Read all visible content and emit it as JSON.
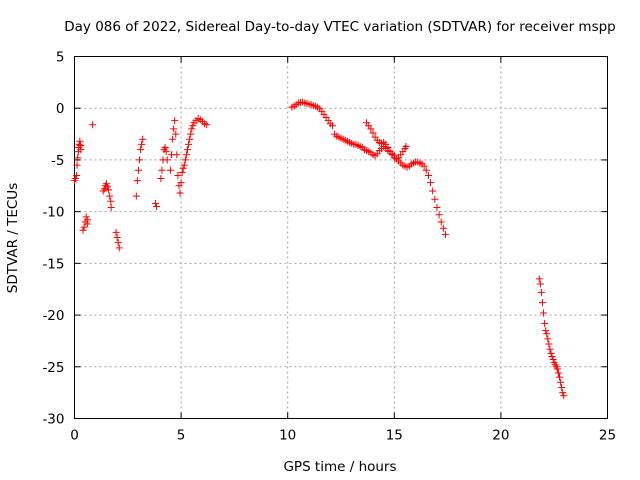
{
  "chart_data": {
    "type": "scatter",
    "title": "Day 086 of 2022, Sidereal Day-to-day VTEC variation (SDTVAR) for receiver mspp",
    "xlabel": "GPS time / hours",
    "ylabel": "SDTVAR / TECUs",
    "xlim": [
      0,
      25
    ],
    "ylim": [
      -30,
      5
    ],
    "xticks": [
      0,
      5,
      10,
      15,
      20,
      25
    ],
    "yticks": [
      5,
      0,
      -5,
      -10,
      -15,
      -20,
      -25,
      -30
    ],
    "grid": true,
    "marker": "+",
    "color": "#ff0000",
    "series": [
      {
        "name": "SDTVAR",
        "points": [
          [
            0.0,
            -7.0
          ],
          [
            0.05,
            -6.8
          ],
          [
            0.1,
            -6.5
          ],
          [
            0.12,
            -5.5
          ],
          [
            0.15,
            -4.8
          ],
          [
            0.18,
            -4.2
          ],
          [
            0.2,
            -3.8
          ],
          [
            0.22,
            -3.5
          ],
          [
            0.25,
            -3.2
          ],
          [
            0.28,
            -3.6
          ],
          [
            0.3,
            -4.0
          ],
          [
            0.4,
            -11.8
          ],
          [
            0.45,
            -11.5
          ],
          [
            0.5,
            -11.0
          ],
          [
            0.55,
            -10.5
          ],
          [
            0.6,
            -11.2
          ],
          [
            0.62,
            -10.8
          ],
          [
            0.85,
            -1.6
          ],
          [
            1.35,
            -8.0
          ],
          [
            1.4,
            -7.8
          ],
          [
            1.45,
            -7.5
          ],
          [
            1.5,
            -7.3
          ],
          [
            1.55,
            -7.6
          ],
          [
            1.6,
            -7.9
          ],
          [
            1.65,
            -8.5
          ],
          [
            1.7,
            -9.0
          ],
          [
            1.72,
            -9.6
          ],
          [
            1.95,
            -12.0
          ],
          [
            2.0,
            -12.5
          ],
          [
            2.05,
            -13.0
          ],
          [
            2.1,
            -13.5
          ],
          [
            2.9,
            -8.5
          ],
          [
            2.95,
            -7.0
          ],
          [
            3.0,
            -6.0
          ],
          [
            3.05,
            -5.0
          ],
          [
            3.1,
            -4.0
          ],
          [
            3.15,
            -3.5
          ],
          [
            3.2,
            -3.0
          ],
          [
            3.8,
            -9.2
          ],
          [
            3.85,
            -9.5
          ],
          [
            4.05,
            -6.8
          ],
          [
            4.1,
            -6.0
          ],
          [
            4.15,
            -5.0
          ],
          [
            4.2,
            -4.0
          ],
          [
            4.25,
            -3.8
          ],
          [
            4.3,
            -4.2
          ],
          [
            4.35,
            -5.0
          ],
          [
            4.5,
            -6.0
          ],
          [
            4.55,
            -4.5
          ],
          [
            4.6,
            -3.0
          ],
          [
            4.65,
            -2.0
          ],
          [
            4.7,
            -1.2
          ],
          [
            4.75,
            -2.5
          ],
          [
            4.8,
            -4.5
          ],
          [
            4.85,
            -6.5
          ],
          [
            4.9,
            -7.5
          ],
          [
            4.95,
            -8.2
          ],
          [
            5.0,
            -7.2
          ],
          [
            5.05,
            -6.2
          ],
          [
            5.1,
            -5.8
          ],
          [
            5.15,
            -5.5
          ],
          [
            5.2,
            -5.0
          ],
          [
            5.25,
            -4.5
          ],
          [
            5.3,
            -4.0
          ],
          [
            5.35,
            -3.5
          ],
          [
            5.4,
            -3.0
          ],
          [
            5.45,
            -2.5
          ],
          [
            5.5,
            -2.0
          ],
          [
            5.55,
            -1.7
          ],
          [
            5.6,
            -1.4
          ],
          [
            5.7,
            -1.2
          ],
          [
            5.8,
            -1.0
          ],
          [
            5.9,
            -1.1
          ],
          [
            6.0,
            -1.3
          ],
          [
            6.1,
            -1.5
          ],
          [
            6.2,
            -1.6
          ],
          [
            10.2,
            0.1
          ],
          [
            10.3,
            0.2
          ],
          [
            10.4,
            0.35
          ],
          [
            10.5,
            0.5
          ],
          [
            10.6,
            0.55
          ],
          [
            10.7,
            0.6
          ],
          [
            10.8,
            0.5
          ],
          [
            10.9,
            0.45
          ],
          [
            11.0,
            0.4
          ],
          [
            11.1,
            0.35
          ],
          [
            11.2,
            0.25
          ],
          [
            11.3,
            0.2
          ],
          [
            11.4,
            0.1
          ],
          [
            11.5,
            -0.05
          ],
          [
            11.6,
            -0.3
          ],
          [
            11.7,
            -0.6
          ],
          [
            11.8,
            -0.9
          ],
          [
            11.9,
            -1.2
          ],
          [
            12.0,
            -1.5
          ],
          [
            12.1,
            -1.7
          ],
          [
            12.2,
            -2.5
          ],
          [
            12.3,
            -2.7
          ],
          [
            12.4,
            -2.8
          ],
          [
            12.5,
            -2.9
          ],
          [
            12.6,
            -3.0
          ],
          [
            12.7,
            -3.1
          ],
          [
            12.8,
            -3.2
          ],
          [
            12.9,
            -3.3
          ],
          [
            13.0,
            -3.4
          ],
          [
            13.1,
            -3.5
          ],
          [
            13.2,
            -3.5
          ],
          [
            13.3,
            -3.6
          ],
          [
            13.4,
            -3.7
          ],
          [
            13.5,
            -3.8
          ],
          [
            13.6,
            -4.0
          ],
          [
            13.7,
            -4.1
          ],
          [
            13.8,
            -4.2
          ],
          [
            13.9,
            -4.3
          ],
          [
            14.0,
            -4.5
          ],
          [
            14.1,
            -4.6
          ],
          [
            14.2,
            -4.4
          ],
          [
            14.3,
            -4.1
          ],
          [
            14.4,
            -3.9
          ],
          [
            14.5,
            -3.7
          ],
          [
            14.6,
            -3.9
          ],
          [
            14.7,
            -4.1
          ],
          [
            14.8,
            -4.2
          ],
          [
            14.9,
            -4.4
          ],
          [
            15.0,
            -4.6
          ],
          [
            15.1,
            -4.9
          ],
          [
            15.2,
            -5.1
          ],
          [
            15.3,
            -5.3
          ],
          [
            15.4,
            -5.5
          ],
          [
            15.5,
            -5.6
          ],
          [
            15.6,
            -5.7
          ],
          [
            15.7,
            -5.6
          ],
          [
            15.8,
            -5.4
          ],
          [
            15.9,
            -5.3
          ],
          [
            16.0,
            -5.2
          ],
          [
            16.1,
            -5.2
          ],
          [
            16.2,
            -5.3
          ],
          [
            16.3,
            -5.4
          ],
          [
            16.4,
            -5.6
          ],
          [
            16.5,
            -6.0
          ],
          [
            16.6,
            -6.5
          ],
          [
            16.7,
            -7.2
          ],
          [
            16.8,
            -8.0
          ],
          [
            16.9,
            -8.8
          ],
          [
            17.0,
            -9.6
          ],
          [
            17.1,
            -10.3
          ],
          [
            17.2,
            -11.0
          ],
          [
            17.3,
            -11.6
          ],
          [
            17.4,
            -12.2
          ],
          [
            13.7,
            -1.4
          ],
          [
            13.8,
            -1.7
          ],
          [
            13.9,
            -2.0
          ],
          [
            14.0,
            -2.4
          ],
          [
            14.1,
            -2.8
          ],
          [
            14.2,
            -3.1
          ],
          [
            14.3,
            -3.3
          ],
          [
            14.4,
            -3.4
          ],
          [
            14.5,
            -3.3
          ],
          [
            14.6,
            -3.5
          ],
          [
            14.7,
            -3.8
          ],
          [
            14.8,
            -4.2
          ],
          [
            14.9,
            -4.5
          ],
          [
            15.0,
            -4.8
          ],
          [
            15.1,
            -4.9
          ],
          [
            15.2,
            -4.8
          ],
          [
            15.3,
            -4.5
          ],
          [
            15.4,
            -4.2
          ],
          [
            15.5,
            -3.9
          ],
          [
            15.55,
            -3.7
          ],
          [
            21.8,
            -16.5
          ],
          [
            21.85,
            -17.0
          ],
          [
            21.9,
            -17.8
          ],
          [
            21.95,
            -18.8
          ],
          [
            22.0,
            -19.8
          ],
          [
            22.05,
            -20.8
          ],
          [
            22.1,
            -21.5
          ],
          [
            22.15,
            -21.8
          ],
          [
            22.2,
            -22.3
          ],
          [
            22.25,
            -22.8
          ],
          [
            22.3,
            -23.3
          ],
          [
            22.35,
            -23.7
          ],
          [
            22.4,
            -24.0
          ],
          [
            22.45,
            -24.3
          ],
          [
            22.5,
            -24.6
          ],
          [
            22.55,
            -24.8
          ],
          [
            22.6,
            -25.0
          ],
          [
            22.65,
            -25.2
          ],
          [
            22.7,
            -25.6
          ],
          [
            22.75,
            -26.0
          ],
          [
            22.8,
            -26.5
          ],
          [
            22.85,
            -27.0
          ],
          [
            22.9,
            -27.5
          ],
          [
            22.95,
            -27.8
          ]
        ]
      }
    ]
  }
}
